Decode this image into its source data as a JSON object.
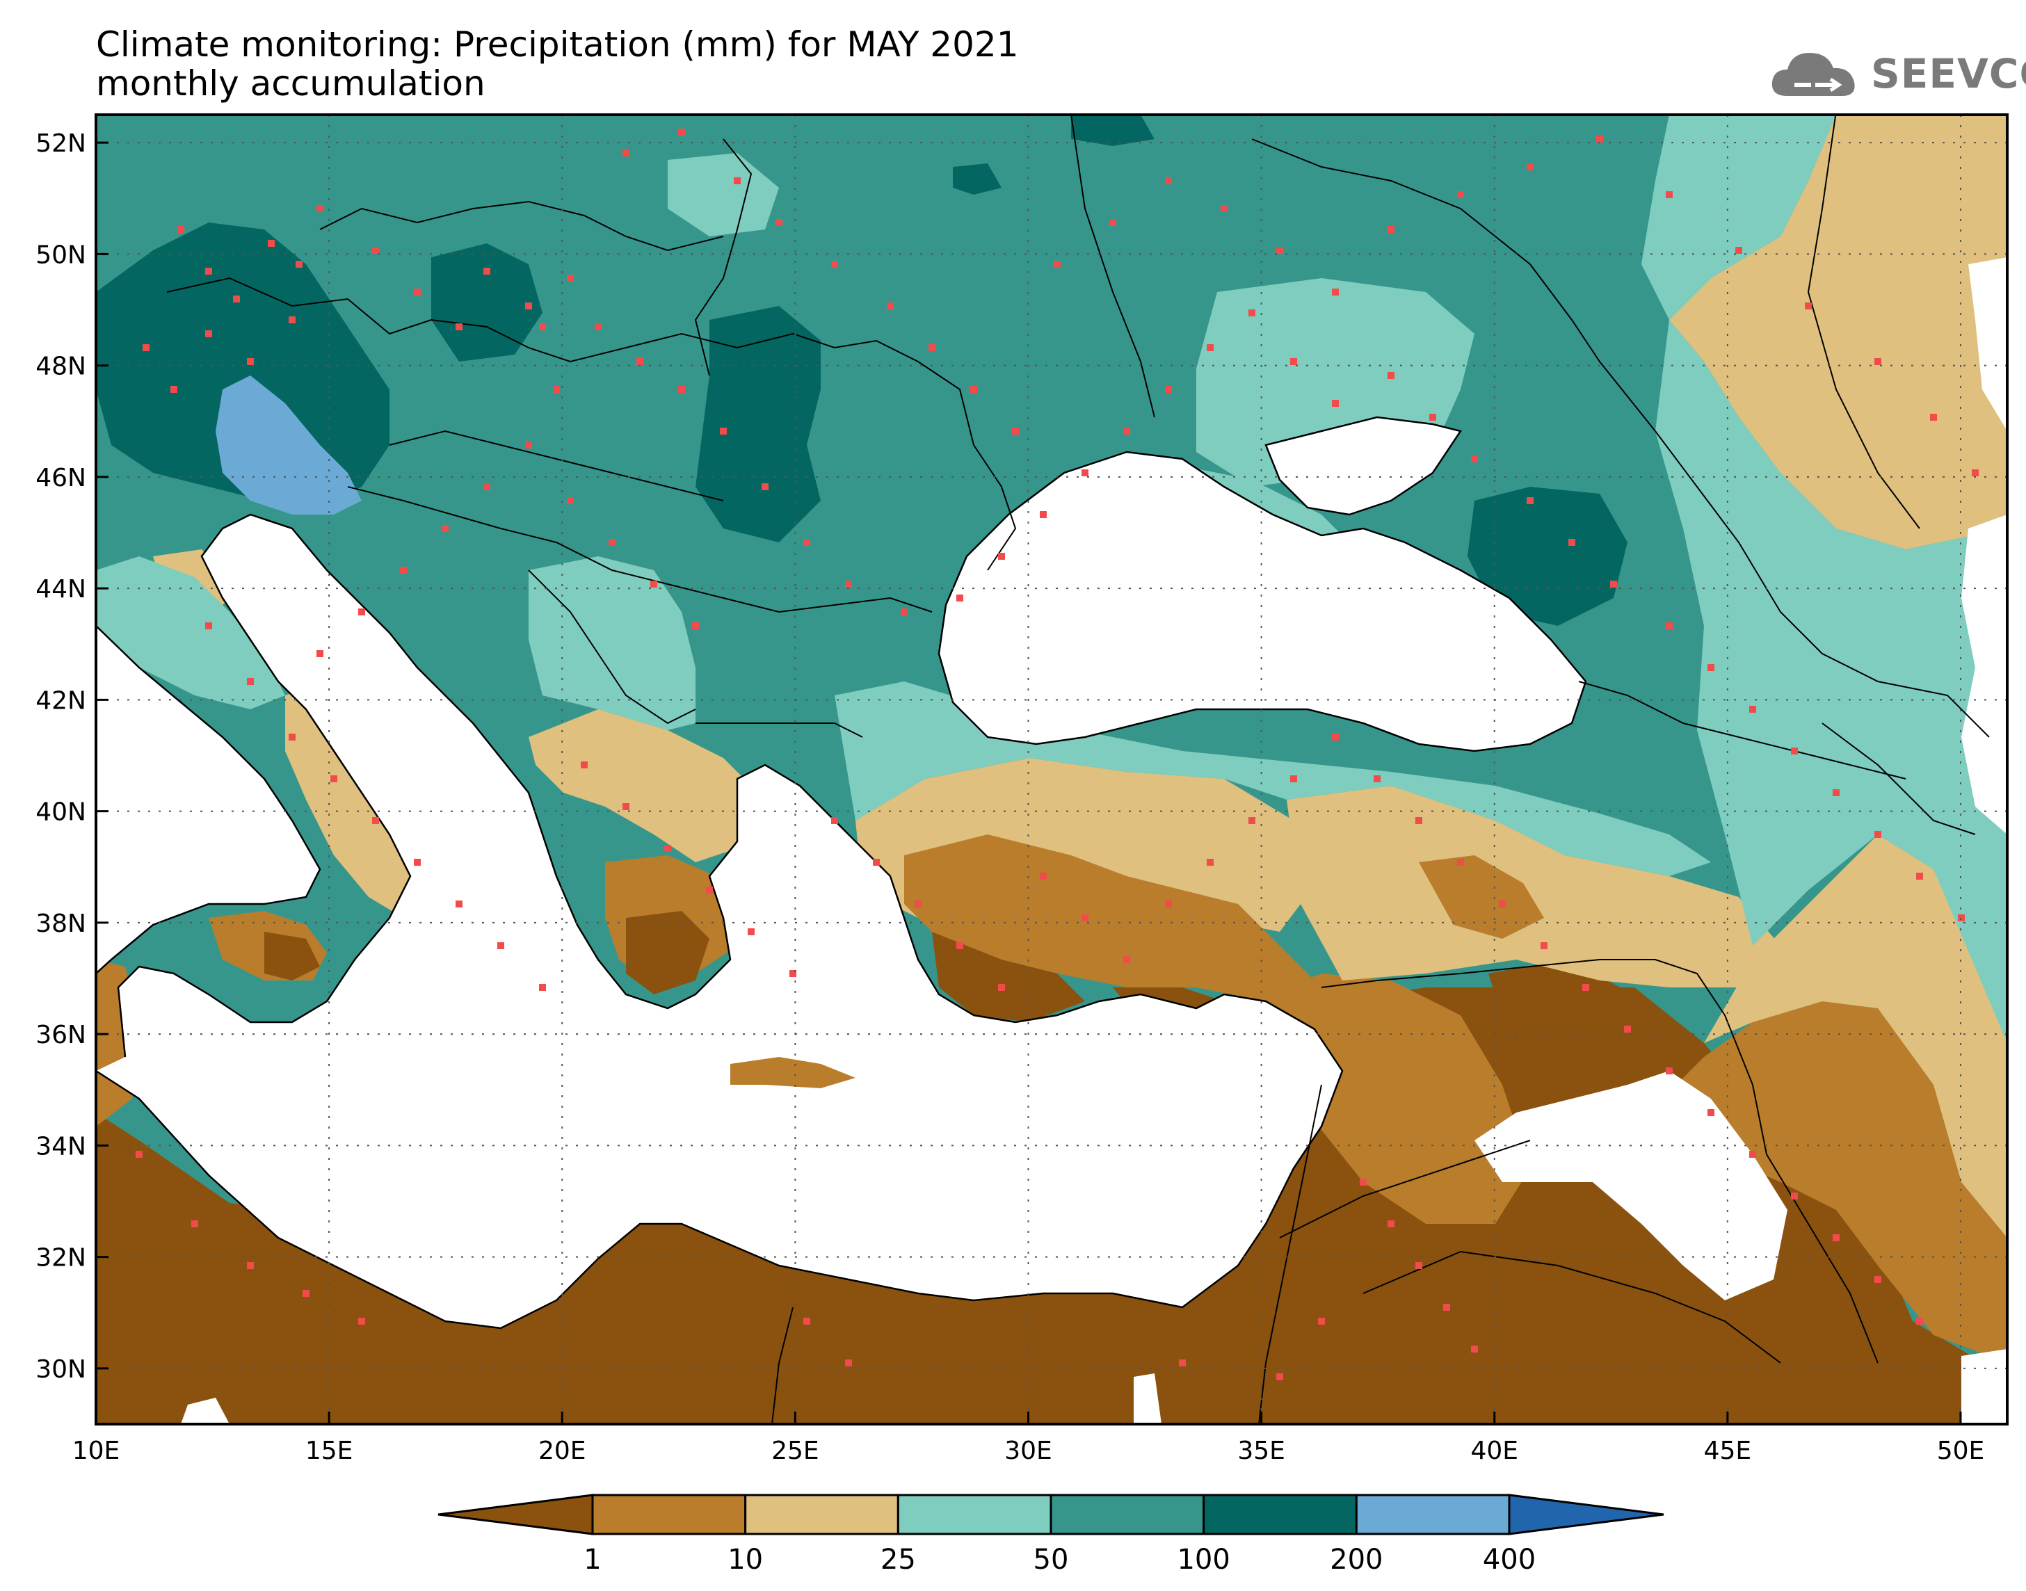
{
  "title": {
    "line1": "Climate monitoring: Precipitation (mm) for MAY 2021",
    "line2": "monthly accumulation"
  },
  "logo": {
    "text": "SEEVCCC",
    "icon": "cloud-logo-icon"
  },
  "map": {
    "lon_range": [
      10,
      51
    ],
    "lat_range": [
      29,
      52.5
    ],
    "lon_ticks": [
      "10E",
      "15E",
      "20E",
      "25E",
      "30E",
      "35E",
      "40E",
      "45E",
      "50E"
    ],
    "lat_ticks": [
      "30N",
      "32N",
      "34N",
      "36N",
      "38N",
      "40N",
      "42N",
      "44N",
      "46N",
      "48N",
      "50N",
      "52N"
    ],
    "gridlines": true
  },
  "colorbar": {
    "labels": [
      "1",
      "10",
      "25",
      "50",
      "100",
      "200",
      "400"
    ],
    "colors": [
      "#8a520e",
      "#b97d2c",
      "#dfc07e",
      "#7fcdbf",
      "#37968c",
      "#036660",
      "#6aaad4",
      "#2166ac"
    ]
  }
}
